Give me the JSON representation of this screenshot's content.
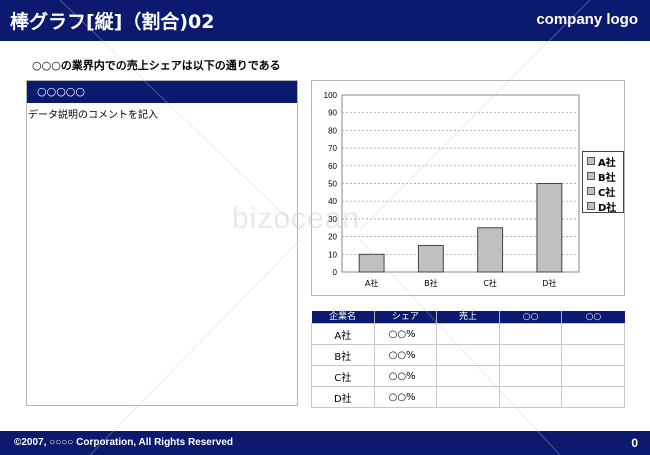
{
  "header": {
    "title": "棒グラフ[縦]（割合)02",
    "logo": "company logo"
  },
  "subheading": "○○○の業界内での売上シェアは以下の通りである",
  "left_panel": {
    "bar_label": "○○○○○",
    "description": "データ説明のコメントを記入"
  },
  "chart_data": {
    "type": "bar",
    "categories": [
      "A社",
      "B社",
      "C社",
      "D社"
    ],
    "values": [
      10,
      15,
      25,
      50
    ],
    "yticks": [
      "0",
      "10",
      "20",
      "30",
      "40",
      "50",
      "60",
      "70",
      "80",
      "90",
      "100"
    ],
    "ylim": [
      0,
      100
    ],
    "grid": true,
    "legend": "right",
    "legend_entries": [
      "A社",
      "B社",
      "C社",
      "D社"
    ],
    "bar_color": "#c0c0c0"
  },
  "table": {
    "headers": [
      "企業名",
      "シェア",
      "売上",
      "○○",
      "○○"
    ],
    "rows": [
      [
        "A社",
        "○○%",
        "",
        "",
        ""
      ],
      [
        "B社",
        "○○%",
        "",
        "",
        ""
      ],
      [
        "C社",
        "○○%",
        "",
        "",
        ""
      ],
      [
        "D社",
        "○○%",
        "",
        "",
        ""
      ]
    ]
  },
  "footer": {
    "copyright": "©2007, ○○○○ Corporation, All Rights Reserved",
    "page": "0"
  },
  "watermark": "bizocean",
  "colors": {
    "navy": "#0b1a6f",
    "bar": "#c0c0c0"
  }
}
